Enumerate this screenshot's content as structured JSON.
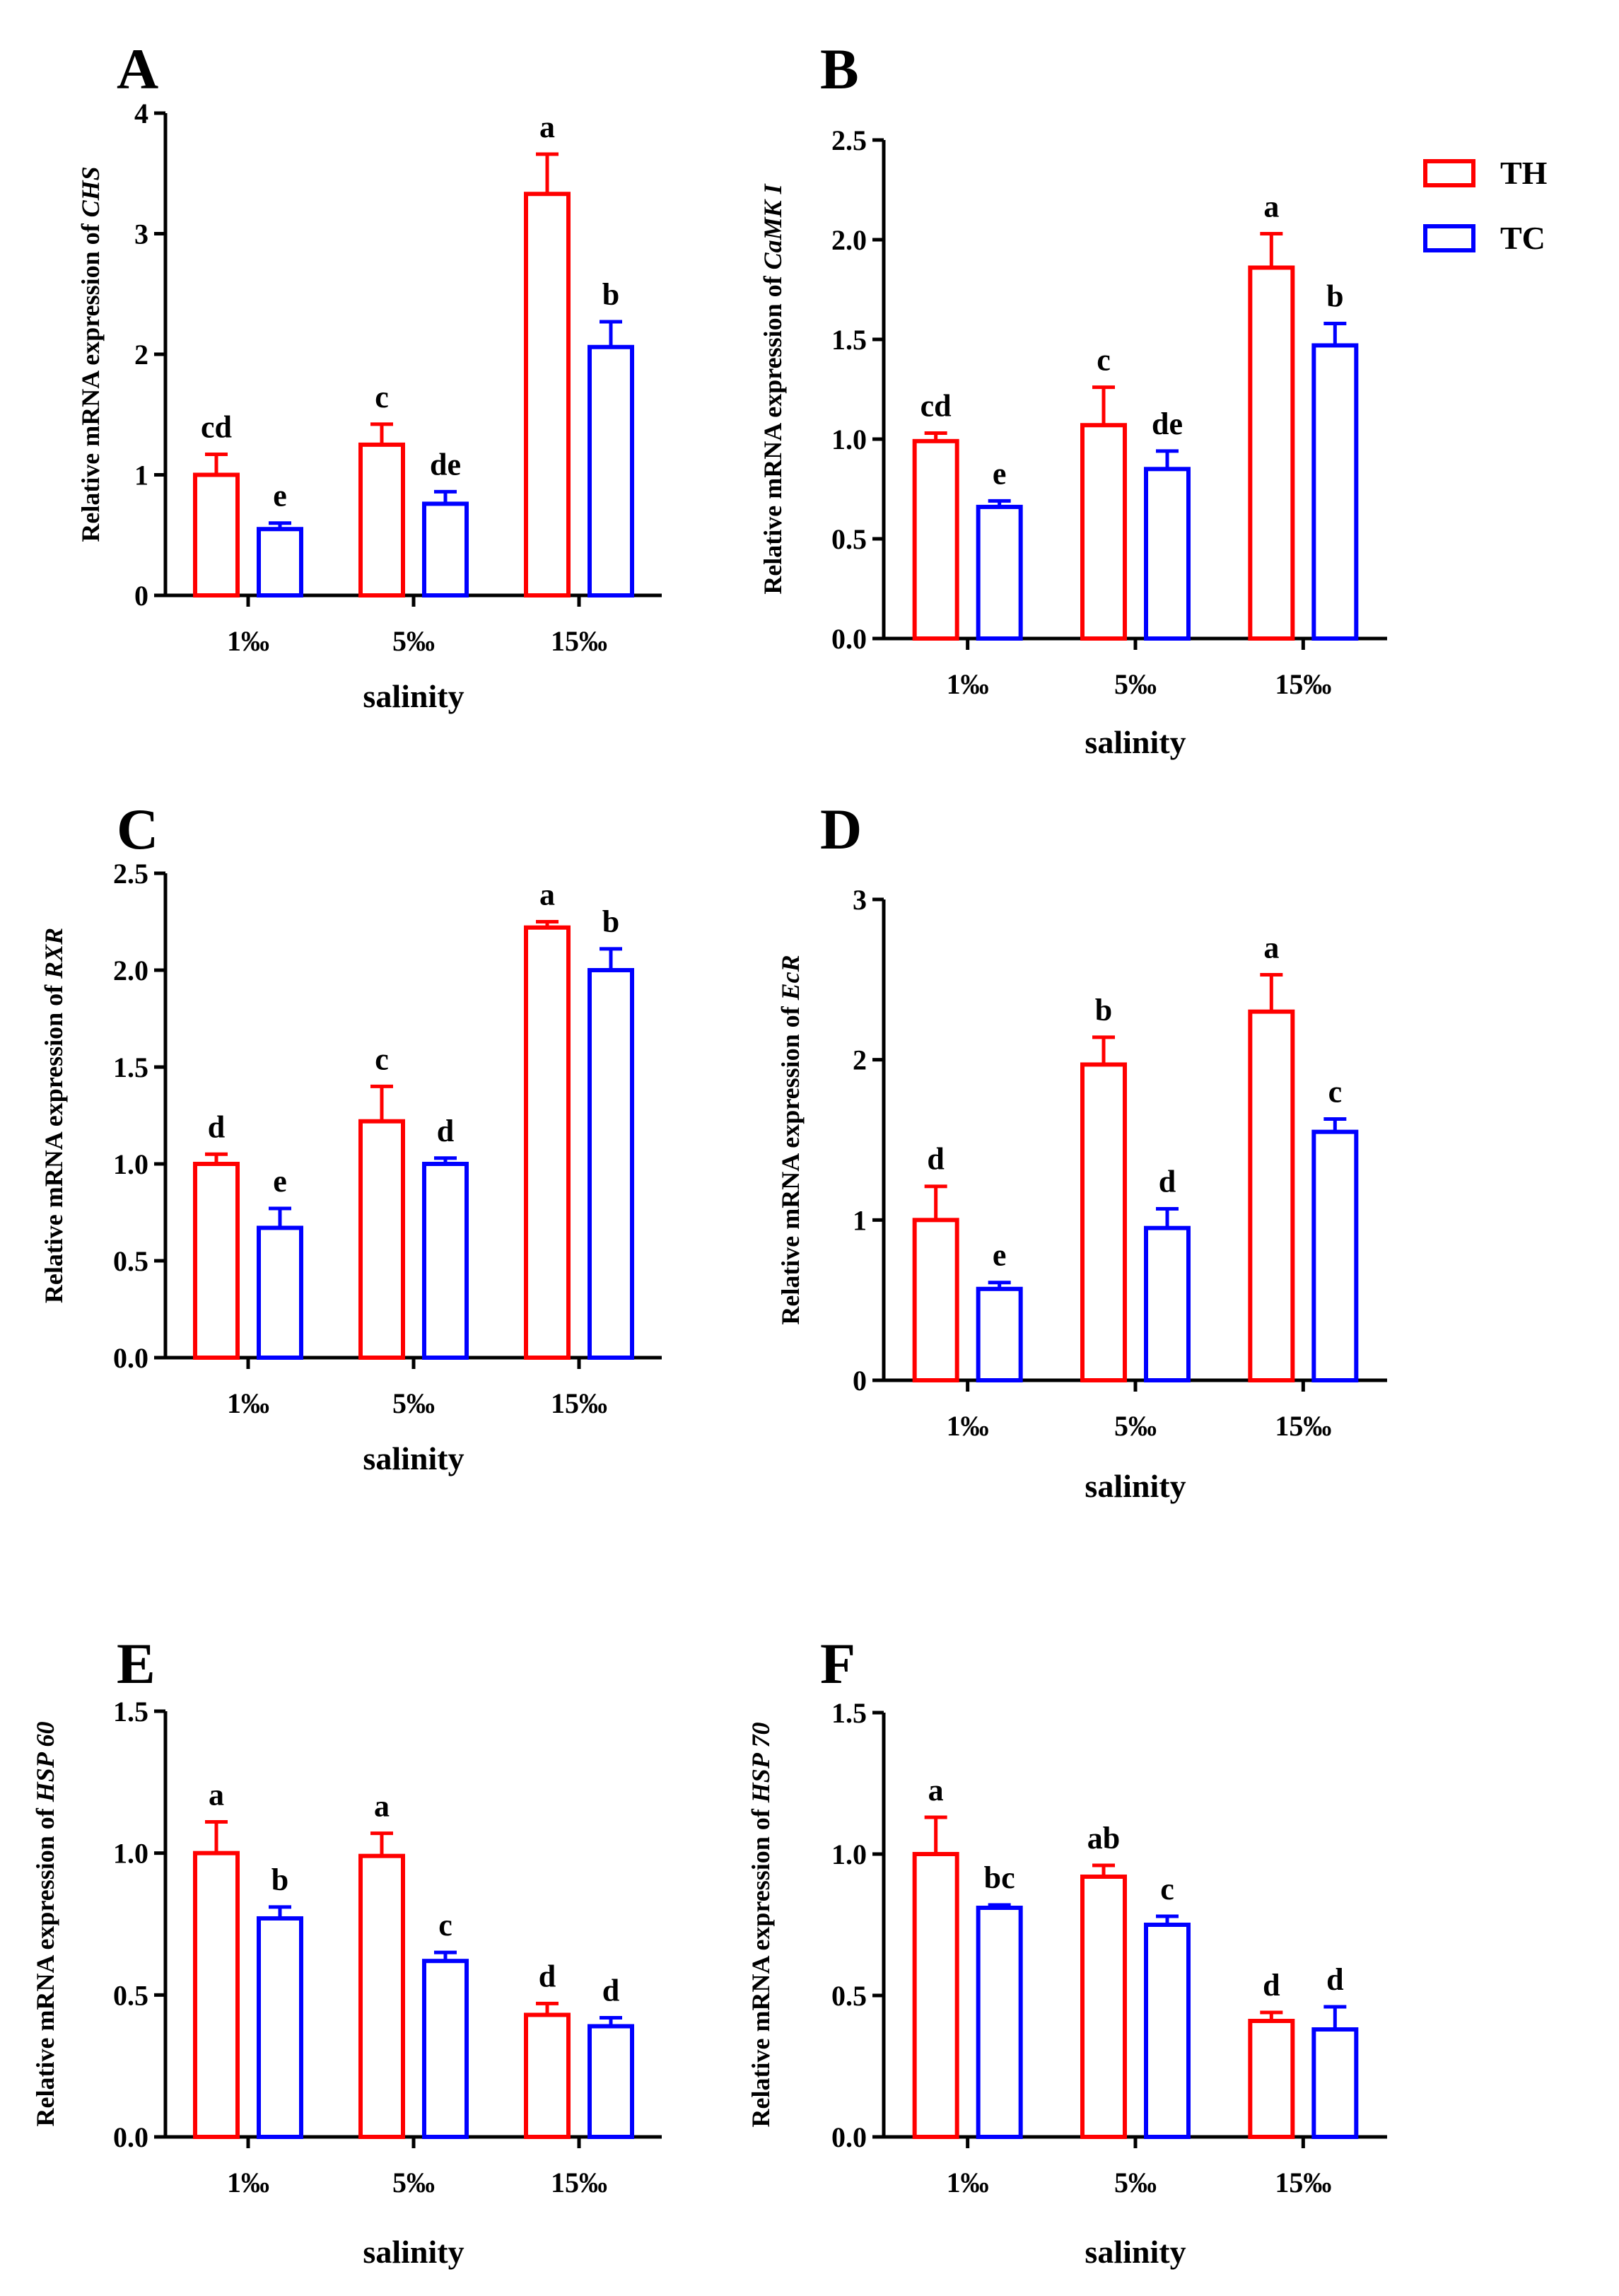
{
  "legend": {
    "items": [
      {
        "label": "TH",
        "color": "#ff0000"
      },
      {
        "label": "TC",
        "color": "#0000ff"
      }
    ]
  },
  "chart_data": [
    {
      "type": "bar",
      "panel": "A",
      "gene": "CHS",
      "ylabel": "Relative mRNA expression of ",
      "xlabel": "salinity",
      "categories": [
        "1‰",
        "5‰",
        "15‰"
      ],
      "ylim": [
        0,
        4
      ],
      "yticks": [
        "0",
        "1",
        "2",
        "3",
        "4"
      ],
      "series": [
        {
          "name": "TH",
          "color": "#ff0000",
          "values": [
            1.0,
            1.25,
            3.33
          ],
          "errors": [
            0.17,
            0.17,
            0.33
          ],
          "letters": [
            "cd",
            "c",
            "a"
          ]
        },
        {
          "name": "TC",
          "color": "#0000ff",
          "values": [
            0.55,
            0.76,
            2.06
          ],
          "errors": [
            0.05,
            0.1,
            0.21
          ],
          "letters": [
            "e",
            "de",
            "b"
          ]
        }
      ]
    },
    {
      "type": "bar",
      "panel": "B",
      "gene": "CaMK I",
      "ylabel": "Relative mRNA expression of ",
      "xlabel": "salinity",
      "categories": [
        "1‰",
        "5‰",
        "15‰"
      ],
      "ylim": [
        0,
        2.5
      ],
      "yticks": [
        "0.0",
        "0.5",
        "1.0",
        "1.5",
        "2.0",
        "2.5"
      ],
      "series": [
        {
          "name": "TH",
          "color": "#ff0000",
          "values": [
            0.99,
            1.07,
            1.86
          ],
          "errors": [
            0.04,
            0.19,
            0.17
          ],
          "letters": [
            "cd",
            "c",
            "a"
          ]
        },
        {
          "name": "TC",
          "color": "#0000ff",
          "values": [
            0.66,
            0.85,
            1.47
          ],
          "errors": [
            0.03,
            0.09,
            0.11
          ],
          "letters": [
            "e",
            "de",
            "b"
          ]
        }
      ]
    },
    {
      "type": "bar",
      "panel": "C",
      "gene": "RXR",
      "ylabel": "Relative mRNA expression of ",
      "xlabel": "salinity",
      "categories": [
        "1‰",
        "5‰",
        "15‰"
      ],
      "ylim": [
        0,
        2.5
      ],
      "yticks": [
        "0.0",
        "0.5",
        "1.0",
        "1.5",
        "2.0",
        "2.5"
      ],
      "series": [
        {
          "name": "TH",
          "color": "#ff0000",
          "values": [
            1.0,
            1.22,
            2.22
          ],
          "errors": [
            0.05,
            0.18,
            0.03
          ],
          "letters": [
            "d",
            "c",
            "a"
          ]
        },
        {
          "name": "TC",
          "color": "#0000ff",
          "values": [
            0.67,
            1.0,
            2.0
          ],
          "errors": [
            0.1,
            0.03,
            0.11
          ],
          "letters": [
            "e",
            "d",
            "b"
          ]
        }
      ]
    },
    {
      "type": "bar",
      "panel": "D",
      "gene": "EcR",
      "ylabel": "Relative mRNA expression of ",
      "xlabel": "salinity",
      "categories": [
        "1‰",
        "5‰",
        "15‰"
      ],
      "ylim": [
        0,
        3
      ],
      "yticks": [
        "0",
        "1",
        "2",
        "3"
      ],
      "series": [
        {
          "name": "TH",
          "color": "#ff0000",
          "values": [
            1.0,
            1.97,
            2.3
          ],
          "errors": [
            0.21,
            0.17,
            0.23
          ],
          "letters": [
            "d",
            "b",
            "a"
          ]
        },
        {
          "name": "TC",
          "color": "#0000ff",
          "values": [
            0.57,
            0.95,
            1.55
          ],
          "errors": [
            0.04,
            0.12,
            0.08
          ],
          "letters": [
            "e",
            "d",
            "c"
          ]
        }
      ]
    },
    {
      "type": "bar",
      "panel": "E",
      "gene": "HSP 60",
      "ylabel": "Relative mRNA expression of ",
      "xlabel": "salinity",
      "categories": [
        "1‰",
        "5‰",
        "15‰"
      ],
      "ylim": [
        0,
        1.5
      ],
      "yticks": [
        "0.0",
        "0.5",
        "1.0",
        "1.5"
      ],
      "series": [
        {
          "name": "TH",
          "color": "#ff0000",
          "values": [
            1.0,
            0.99,
            0.43
          ],
          "errors": [
            0.11,
            0.08,
            0.04
          ],
          "letters": [
            "a",
            "a",
            "d"
          ]
        },
        {
          "name": "TC",
          "color": "#0000ff",
          "values": [
            0.77,
            0.62,
            0.39
          ],
          "errors": [
            0.04,
            0.03,
            0.03
          ],
          "letters": [
            "b",
            "c",
            "d"
          ]
        }
      ]
    },
    {
      "type": "bar",
      "panel": "F",
      "gene": "HSP 70",
      "ylabel": "Relative mRNA expression of ",
      "xlabel": "salinity",
      "categories": [
        "1‰",
        "5‰",
        "15‰"
      ],
      "ylim": [
        0,
        1.5
      ],
      "yticks": [
        "0.0",
        "0.5",
        "1.0",
        "1.5"
      ],
      "series": [
        {
          "name": "TH",
          "color": "#ff0000",
          "values": [
            1.0,
            0.92,
            0.41
          ],
          "errors": [
            0.13,
            0.04,
            0.03
          ],
          "letters": [
            "a",
            "ab",
            "d"
          ]
        },
        {
          "name": "TC",
          "color": "#0000ff",
          "values": [
            0.81,
            0.75,
            0.38
          ],
          "errors": [
            0.01,
            0.03,
            0.08
          ],
          "letters": [
            "bc",
            "c",
            "d"
          ]
        }
      ]
    }
  ]
}
